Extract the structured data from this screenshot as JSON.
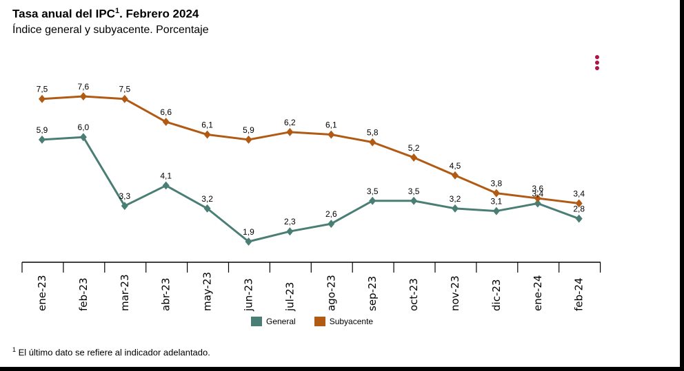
{
  "title": "Tasa anual del IPC",
  "title_sup": "1",
  "title_suffix": ". Febrero 2024",
  "subtitle": "Índice general y subyacente. Porcentaje",
  "footnote_sup": "1",
  "footnote": " El último dato se refiere al indicador adelantado.",
  "menu_icon": "kebab-menu-icon",
  "chart_data": {
    "type": "line",
    "categories": [
      "ene-23",
      "feb-23",
      "mar-23",
      "abr-23",
      "may-23",
      "jun-23",
      "jul-23",
      "ago-23",
      "sep-23",
      "oct-23",
      "nov-23",
      "dic-23",
      "ene-24",
      "feb-24"
    ],
    "series": [
      {
        "name": "General",
        "color": "#4a7d74",
        "values": [
          5.9,
          6.0,
          3.3,
          4.1,
          3.2,
          1.9,
          2.3,
          2.6,
          3.5,
          3.5,
          3.2,
          3.1,
          3.4,
          2.8
        ],
        "labels": [
          "5,9",
          "6,0",
          "3,3",
          "4,1",
          "3,2",
          "1,9",
          "2,3",
          "2,6",
          "3,5",
          "3,5",
          "3,2",
          "3,1",
          "3,4",
          "2,8"
        ]
      },
      {
        "name": "Subyacente",
        "color": "#b05a14",
        "values": [
          7.5,
          7.6,
          7.5,
          6.6,
          6.1,
          5.9,
          6.2,
          6.1,
          5.8,
          5.2,
          4.5,
          3.8,
          3.6,
          3.4
        ],
        "labels": [
          "7,5",
          "7,6",
          "7,5",
          "6,6",
          "6,1",
          "5,9",
          "6,2",
          "6,1",
          "5,8",
          "5,2",
          "4,5",
          "3,8",
          "3,6",
          "3,4"
        ]
      }
    ],
    "legend_position": "bottom",
    "grid": false,
    "marker": "diamond"
  }
}
